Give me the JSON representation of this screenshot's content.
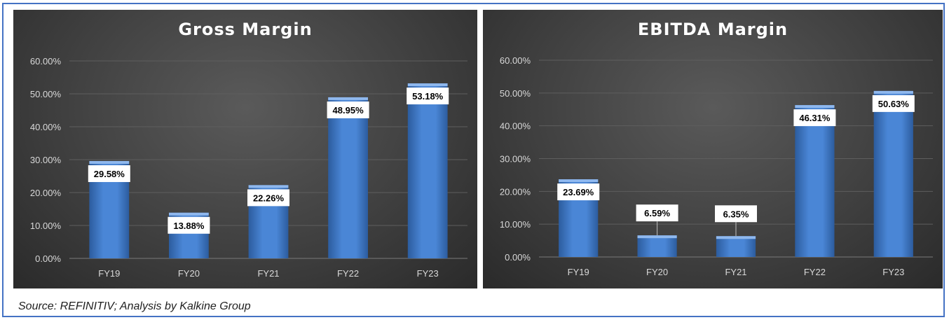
{
  "source": "Source: REFINITIV; Analysis by Kalkine Group",
  "colors": {
    "bar": "#4a86d6",
    "bar_dark": "#2c5c9e",
    "bar_top": "#8fb8ee",
    "label_bg": "#ffffff",
    "grid": "#5e5e5e",
    "axis_text": "#d9d9d9"
  },
  "chart_data": [
    {
      "type": "bar",
      "title": "Gross Margin",
      "categories": [
        "FY19",
        "FY20",
        "FY21",
        "FY22",
        "FY23"
      ],
      "values": [
        29.58,
        13.88,
        22.26,
        48.95,
        53.18
      ],
      "data_labels": [
        "29.58%",
        "13.88%",
        "22.26%",
        "48.95%",
        "53.18%"
      ],
      "yticks": [
        "0.00%",
        "10.00%",
        "20.00%",
        "30.00%",
        "40.00%",
        "50.00%",
        "60.00%"
      ],
      "ylim": [
        0,
        60
      ],
      "grid": true,
      "legend": "none",
      "xlabel": "",
      "ylabel": ""
    },
    {
      "type": "bar",
      "title": "EBITDA Margin",
      "categories": [
        "FY19",
        "FY20",
        "FY21",
        "FY22",
        "FY23"
      ],
      "values": [
        23.69,
        6.59,
        6.35,
        46.31,
        50.63
      ],
      "data_labels": [
        "23.69%",
        "6.59%",
        "6.35%",
        "46.31%",
        "50.63%"
      ],
      "yticks": [
        "0.00%",
        "10.00%",
        "20.00%",
        "30.00%",
        "40.00%",
        "50.00%",
        "60.00%"
      ],
      "ylim": [
        0,
        60
      ],
      "grid": true,
      "legend": "none",
      "xlabel": "",
      "ylabel": ""
    }
  ]
}
